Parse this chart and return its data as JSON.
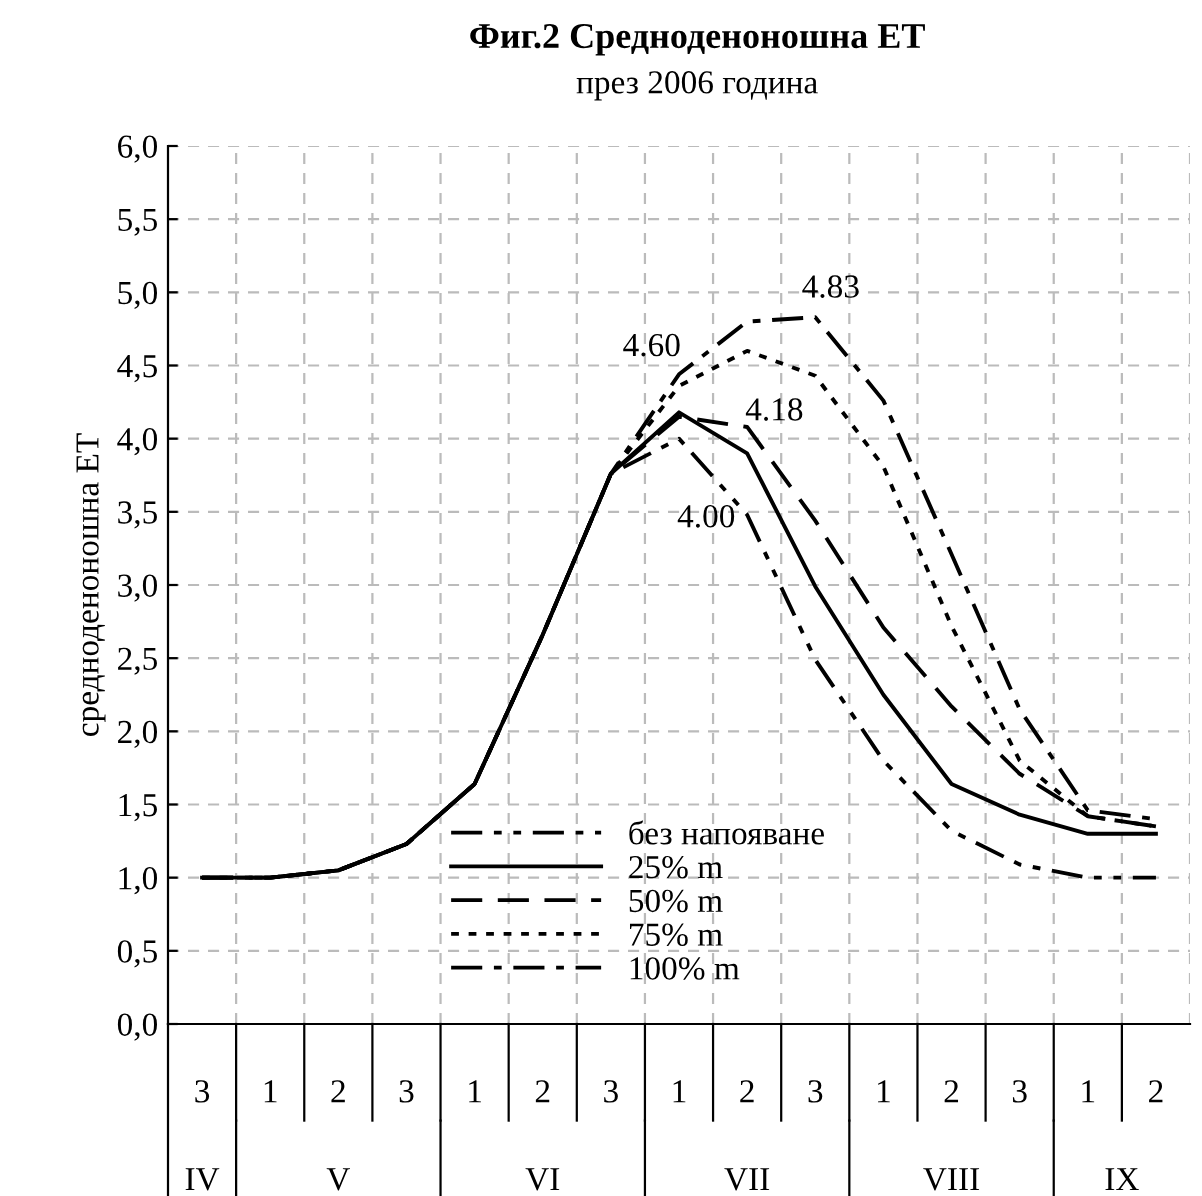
{
  "chart_data": {
    "type": "line",
    "title": "Фиг.2 Средноденоношна ЕТ",
    "subtitle": "през 2006 година",
    "ylabel": "средноденоношна ЕТ",
    "categories": [
      "3",
      "1",
      "2",
      "3",
      "1",
      "2",
      "3",
      "1",
      "2",
      "3",
      "1",
      "2",
      "3",
      "1",
      "2"
    ],
    "series": [
      {
        "name": "без напояване",
        "color": "#000000",
        "line_style": "dashdotdot",
        "values": [
          1.0,
          1.0,
          1.05,
          1.23,
          1.64,
          2.66,
          3.76,
          4.0,
          3.48,
          2.49,
          1.8,
          1.32,
          1.09,
          1.0,
          1.0
        ]
      },
      {
        "name": "25% m",
        "color": "#000000",
        "line_style": "solid",
        "values": [
          1.0,
          1.0,
          1.05,
          1.23,
          1.64,
          2.66,
          3.76,
          4.18,
          3.9,
          2.99,
          2.25,
          1.64,
          1.43,
          1.3,
          1.3
        ]
      },
      {
        "name": "50% m",
        "color": "#000000",
        "line_style": "dashed",
        "values": [
          1.0,
          1.0,
          1.05,
          1.23,
          1.64,
          2.66,
          3.76,
          4.15,
          4.08,
          3.44,
          2.71,
          2.17,
          1.71,
          1.42,
          1.35
        ]
      },
      {
        "name": "75% m",
        "color": "#000000",
        "line_style": "dotted",
        "values": [
          1.0,
          1.0,
          1.05,
          1.23,
          1.64,
          2.66,
          3.76,
          4.36,
          4.6,
          4.43,
          3.81,
          2.72,
          1.8,
          1.42,
          1.35
        ]
      },
      {
        "name": "100% m",
        "color": "#000000",
        "line_style": "dashdot",
        "values": [
          1.0,
          1.0,
          1.05,
          1.23,
          1.64,
          2.66,
          3.76,
          4.44,
          4.8,
          4.83,
          4.26,
          3.21,
          2.15,
          1.46,
          1.4
        ]
      }
    ],
    "annotations": [
      "4.83",
      "4.60",
      "4.18",
      "4.00",
      "IV",
      "V",
      "VI",
      "VII",
      "VIII",
      "IX"
    ],
    "ylim": [
      0,
      6
    ],
    "yticks": [
      {
        "value": 0,
        "label": "0,0"
      },
      {
        "value": 0.5,
        "label": "0,5"
      },
      {
        "value": 1,
        "label": "1,0"
      },
      {
        "value": 1.5,
        "label": "1,5"
      },
      {
        "value": 2,
        "label": "2,0"
      },
      {
        "value": 2.5,
        "label": "2,5"
      },
      {
        "value": 3,
        "label": "3,0"
      },
      {
        "value": 3.5,
        "label": "3,5"
      },
      {
        "value": 4,
        "label": "4,0"
      },
      {
        "value": 4.5,
        "label": "4,5"
      },
      {
        "value": 5,
        "label": "5,0"
      },
      {
        "value": 5.5,
        "label": "5,5"
      },
      {
        "value": 6,
        "label": "6,0"
      }
    ],
    "grid": true,
    "legend": "bottom"
  }
}
